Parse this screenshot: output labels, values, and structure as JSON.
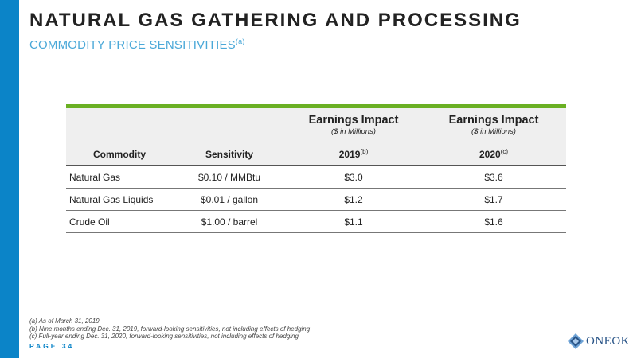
{
  "header": {
    "title": "NATURAL GAS GATHERING AND PROCESSING",
    "subtitle": "COMMODITY PRICE SENSITIVITIES",
    "subtitle_note": "(a)"
  },
  "table": {
    "group_header": {
      "label": "Earnings Impact",
      "units": "($ in Millions)"
    },
    "columns": [
      {
        "label": "Commodity",
        "note": ""
      },
      {
        "label": "Sensitivity",
        "note": ""
      },
      {
        "label": "2019",
        "note": "(b)"
      },
      {
        "label": "2020",
        "note": "(c)"
      }
    ],
    "rows": [
      [
        "Natural Gas",
        "$0.10 / MMBtu",
        "$3.0",
        "$3.6"
      ],
      [
        "Natural Gas Liquids",
        "$0.01 / gallon",
        "$1.2",
        "$1.7"
      ],
      [
        "Crude Oil",
        "$1.00 / barrel",
        "$1.1",
        "$1.6"
      ]
    ]
  },
  "footnotes": [
    "(a) As of March 31, 2019",
    "(b) Nine months ending Dec. 31, 2019, forward-looking sensitivities, not including effects of hedging",
    "(c) Full-year ending Dec. 31, 2020, forward-looking sensitivities, not including effects of hedging"
  ],
  "footer": {
    "page_label": "PAGE 34",
    "logo_text": "ONEOK"
  },
  "colors": {
    "accent_blue": "#0b84c8",
    "accent_green": "#6ab023",
    "subtitle_blue": "#4aa8d8"
  }
}
